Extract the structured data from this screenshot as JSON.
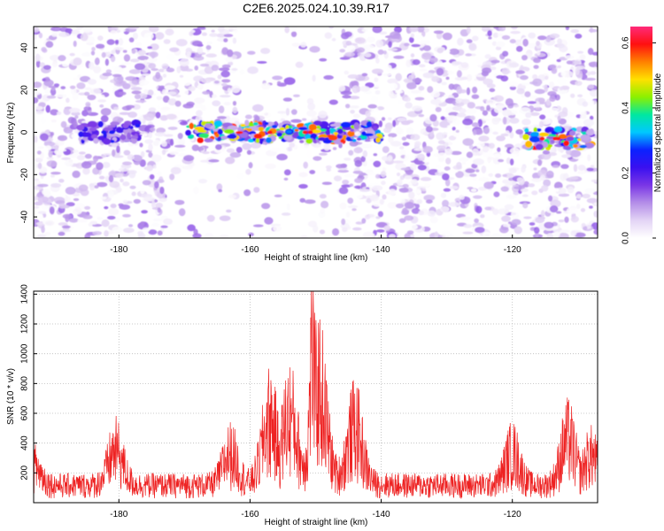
{
  "title": "C2E6.2025.024.10.39.R17",
  "chart_data": [
    {
      "type": "heatmap",
      "xlabel": "Height of straight line (km)",
      "ylabel": "Frequency (Hz)",
      "xlim": [
        -193,
        -107
      ],
      "ylim": [
        -50,
        50
      ],
      "xticks": [
        -180,
        -160,
        -140,
        -120
      ],
      "yticks": [
        -40,
        -20,
        0,
        20,
        40
      ],
      "colorbar": {
        "label": "Normalized spectral amplitude",
        "range": [
          0,
          0.65
        ],
        "ticks": [
          "0.0",
          "0.2",
          "0.4",
          "0.6"
        ],
        "colors": [
          "#ffffff",
          "#e3d4f5",
          "#b48ee8",
          "#7a36e6",
          "#3a10f0",
          "#0b22ff",
          "#00c8ff",
          "#00e8a0",
          "#8cf000",
          "#ffe000",
          "#ff8000",
          "#ff1010",
          "#ff2a7a"
        ]
      },
      "features": [
        {
          "x_range": [
            -186,
            -177
          ],
          "freq": 0,
          "amplitude": 0.25
        },
        {
          "x_range": [
            -170,
            -140
          ],
          "freq": 0,
          "amplitude": 0.6
        },
        {
          "x_range": [
            -118,
            -108
          ],
          "freq": -3,
          "amplitude": 0.6
        }
      ]
    },
    {
      "type": "line",
      "xlabel": "Height of straight line (km)",
      "ylabel": "SNR (10 * v/v)",
      "xlim": [
        -193,
        -107
      ],
      "ylim": [
        0,
        1420
      ],
      "xticks": [
        -180,
        -160,
        -140,
        -120
      ],
      "yticks": [
        200,
        400,
        600,
        800,
        1000,
        1200,
        1400
      ],
      "grid": true,
      "color": "#ee2222",
      "peaks": [
        {
          "x": -193,
          "y": 370
        },
        {
          "x": -180.5,
          "y": 530
        },
        {
          "x": -163,
          "y": 500
        },
        {
          "x": -157,
          "y": 810
        },
        {
          "x": -154,
          "y": 820
        },
        {
          "x": -150.5,
          "y": 1420
        },
        {
          "x": -149.5,
          "y": 1100
        },
        {
          "x": -144,
          "y": 740
        },
        {
          "x": -120,
          "y": 510
        },
        {
          "x": -111.5,
          "y": 650
        },
        {
          "x": -108,
          "y": 480
        }
      ],
      "baseline": 180
    }
  ]
}
